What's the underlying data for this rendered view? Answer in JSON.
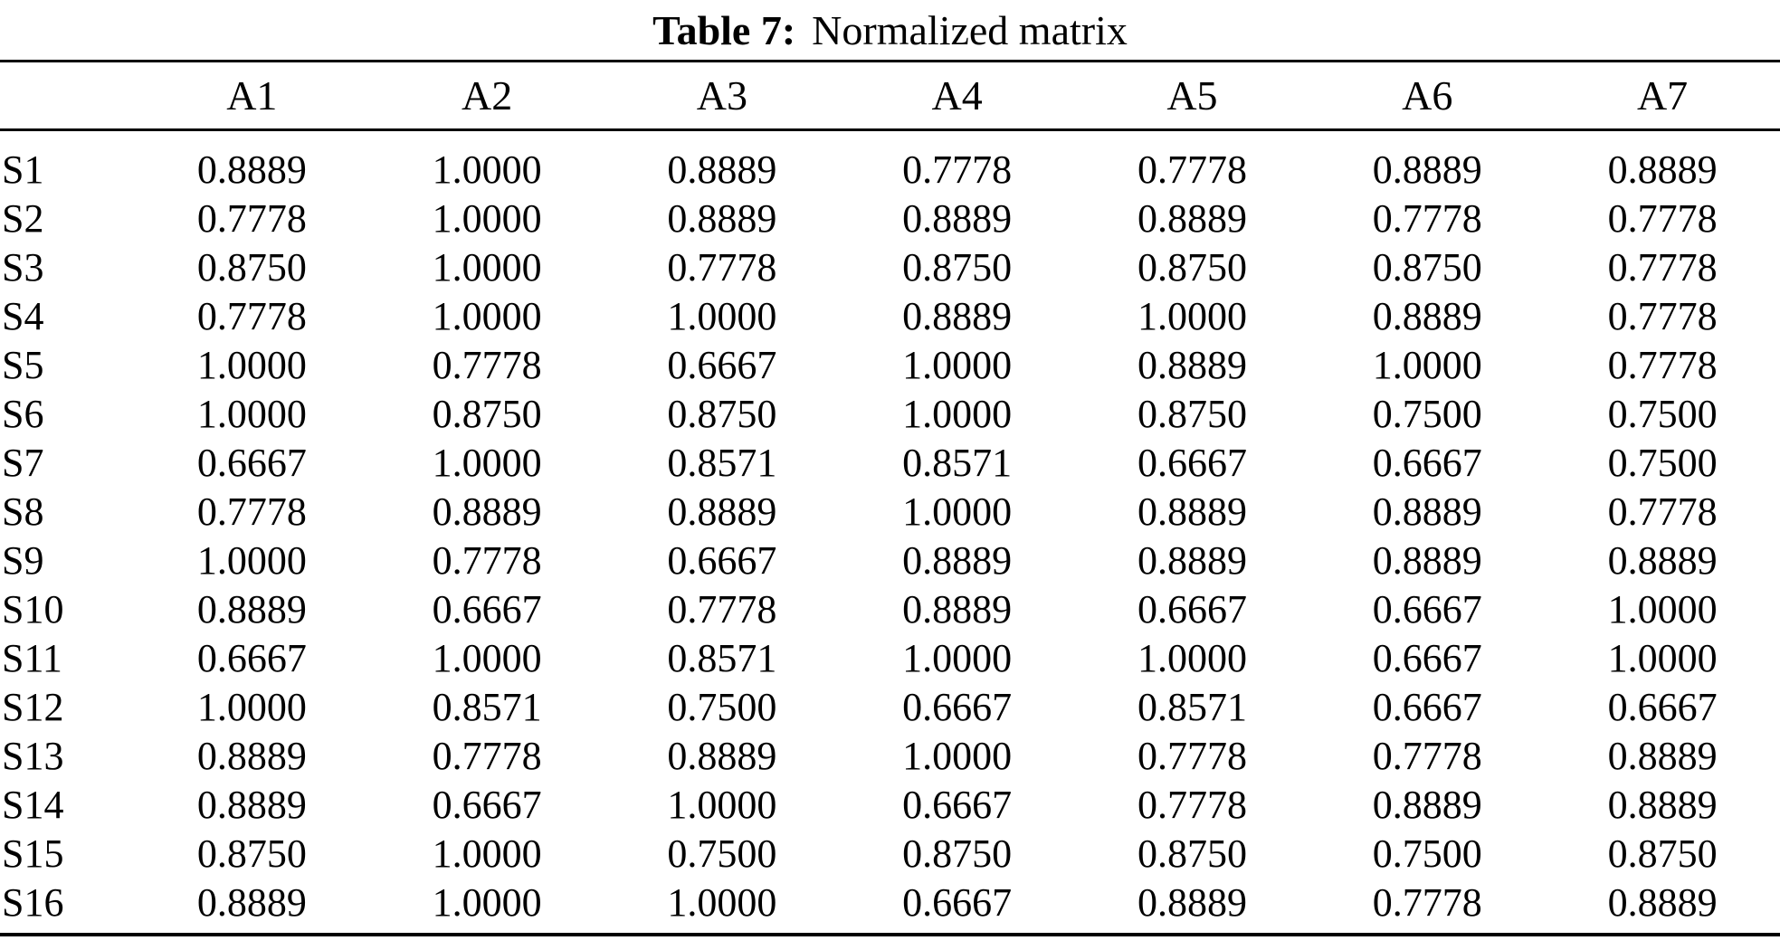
{
  "title": {
    "label": "Table 7:",
    "text": "Normalized matrix"
  },
  "chart_data": {
    "type": "table",
    "title": "Table 7: Normalized matrix",
    "columns": [
      "A1",
      "A2",
      "A3",
      "A4",
      "A5",
      "A6",
      "A7"
    ],
    "rows": [
      {
        "label": "S1",
        "values": [
          "0.8889",
          "1.0000",
          "0.8889",
          "0.7778",
          "0.7778",
          "0.8889",
          "0.8889"
        ]
      },
      {
        "label": "S2",
        "values": [
          "0.7778",
          "1.0000",
          "0.8889",
          "0.8889",
          "0.8889",
          "0.7778",
          "0.7778"
        ]
      },
      {
        "label": "S3",
        "values": [
          "0.8750",
          "1.0000",
          "0.7778",
          "0.8750",
          "0.8750",
          "0.8750",
          "0.7778"
        ]
      },
      {
        "label": "S4",
        "values": [
          "0.7778",
          "1.0000",
          "1.0000",
          "0.8889",
          "1.0000",
          "0.8889",
          "0.7778"
        ]
      },
      {
        "label": "S5",
        "values": [
          "1.0000",
          "0.7778",
          "0.6667",
          "1.0000",
          "0.8889",
          "1.0000",
          "0.7778"
        ]
      },
      {
        "label": "S6",
        "values": [
          "1.0000",
          "0.8750",
          "0.8750",
          "1.0000",
          "0.8750",
          "0.7500",
          "0.7500"
        ]
      },
      {
        "label": "S7",
        "values": [
          "0.6667",
          "1.0000",
          "0.8571",
          "0.8571",
          "0.6667",
          "0.6667",
          "0.7500"
        ]
      },
      {
        "label": "S8",
        "values": [
          "0.7778",
          "0.8889",
          "0.8889",
          "1.0000",
          "0.8889",
          "0.8889",
          "0.7778"
        ]
      },
      {
        "label": "S9",
        "values": [
          "1.0000",
          "0.7778",
          "0.6667",
          "0.8889",
          "0.8889",
          "0.8889",
          "0.8889"
        ]
      },
      {
        "label": "S10",
        "values": [
          "0.8889",
          "0.6667",
          "0.7778",
          "0.8889",
          "0.6667",
          "0.6667",
          "1.0000"
        ]
      },
      {
        "label": "S11",
        "values": [
          "0.6667",
          "1.0000",
          "0.8571",
          "1.0000",
          "1.0000",
          "0.6667",
          "1.0000"
        ]
      },
      {
        "label": "S12",
        "values": [
          "1.0000",
          "0.8571",
          "0.7500",
          "0.6667",
          "0.8571",
          "0.6667",
          "0.6667"
        ]
      },
      {
        "label": "S13",
        "values": [
          "0.8889",
          "0.7778",
          "0.8889",
          "1.0000",
          "0.7778",
          "0.7778",
          "0.8889"
        ]
      },
      {
        "label": "S14",
        "values": [
          "0.8889",
          "0.6667",
          "1.0000",
          "0.6667",
          "0.7778",
          "0.8889",
          "0.8889"
        ]
      },
      {
        "label": "S15",
        "values": [
          "0.8750",
          "1.0000",
          "0.7500",
          "0.8750",
          "0.8750",
          "0.7500",
          "0.8750"
        ]
      },
      {
        "label": "S16",
        "values": [
          "0.8889",
          "1.0000",
          "1.0000",
          "0.6667",
          "0.8889",
          "0.7778",
          "0.8889"
        ]
      }
    ]
  }
}
